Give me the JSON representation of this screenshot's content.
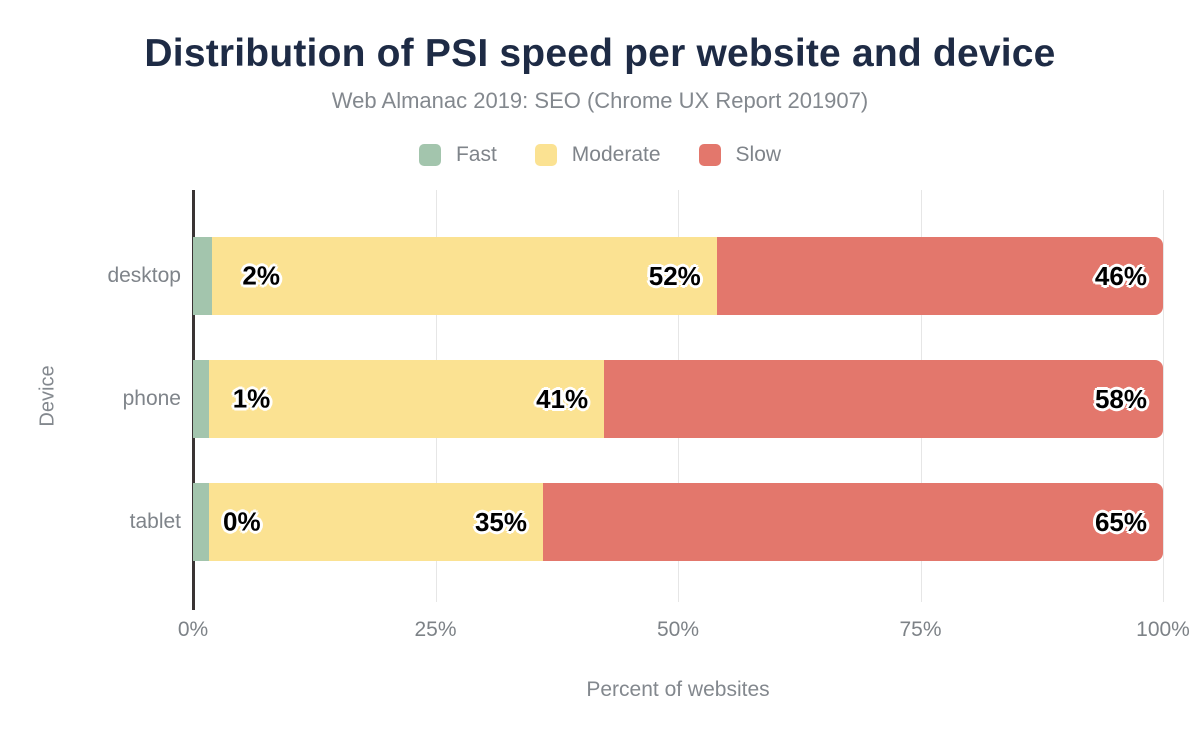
{
  "colors": {
    "background": "#ffffff",
    "title_text": "#1e2b45",
    "muted_text": "#83888e",
    "axis_line": "#3a3434",
    "gridline": "#e6e6e6",
    "fast": "#a3c5ad",
    "moderate": "#fbe292",
    "slow": "#e3776c",
    "data_label": "#000000",
    "data_label_halo": "#ffffff"
  },
  "chart_data": {
    "type": "bar",
    "orientation": "horizontal",
    "stacked": true,
    "title": "Distribution of PSI speed per website and device",
    "subtitle": "Web Almanac 2019: SEO (Chrome UX Report 201907)",
    "xlabel": "Percent of websites",
    "ylabel": "Device",
    "categories": [
      "desktop",
      "phone",
      "tablet"
    ],
    "series": [
      {
        "name": "Fast",
        "color": "#a3c5ad",
        "values": [
          2,
          1,
          0
        ]
      },
      {
        "name": "Moderate",
        "color": "#fbe292",
        "values": [
          52,
          41,
          35
        ]
      },
      {
        "name": "Slow",
        "color": "#e3776c",
        "values": [
          46,
          58,
          65
        ]
      }
    ],
    "data_labels": [
      [
        "2%",
        "52%",
        "46%"
      ],
      [
        "1%",
        "41%",
        "58%"
      ],
      [
        "0%",
        "35%",
        "65%"
      ]
    ],
    "value_suffix": "%",
    "x_tick_labels": [
      "0%",
      "25%",
      "50%",
      "75%",
      "100%"
    ],
    "x_tick_values": [
      0,
      25,
      50,
      75,
      100
    ],
    "xlim": [
      0,
      100
    ],
    "grid": true,
    "legend_position": "top",
    "legend_entries": [
      "Fast",
      "Moderate",
      "Slow"
    ]
  }
}
